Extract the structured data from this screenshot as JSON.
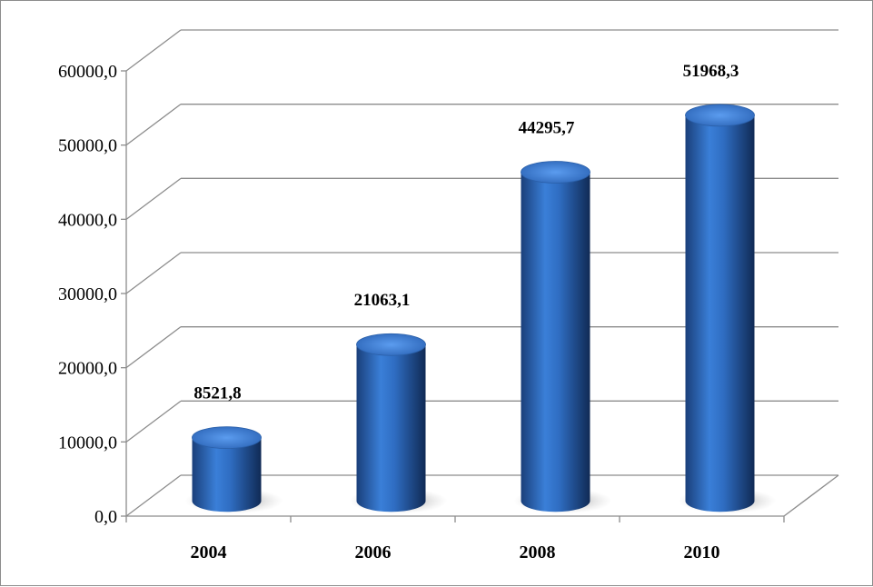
{
  "chart_data": {
    "type": "bar",
    "style": "3d-cylinder",
    "categories": [
      "2004",
      "2006",
      "2008",
      "2010"
    ],
    "values": [
      8521.8,
      21063.1,
      44295.7,
      51968.3
    ],
    "value_labels": [
      "8521,8",
      "21063,1",
      "44295,7",
      "51968,3"
    ],
    "title": "",
    "xlabel": "",
    "ylabel": "",
    "ylim": [
      0,
      60000
    ],
    "yticks": [
      0,
      10000,
      20000,
      30000,
      40000,
      50000,
      60000
    ],
    "ytick_labels": [
      "0,0",
      "10000,0",
      "20000,0",
      "30000,0",
      "40000,0",
      "50000,0",
      "60000,0"
    ],
    "grid": true,
    "legend": "none",
    "bar_color": "#2a6cc4",
    "bar_top_color": "#4d8fe6",
    "grid_color": "#8c8c8c"
  }
}
